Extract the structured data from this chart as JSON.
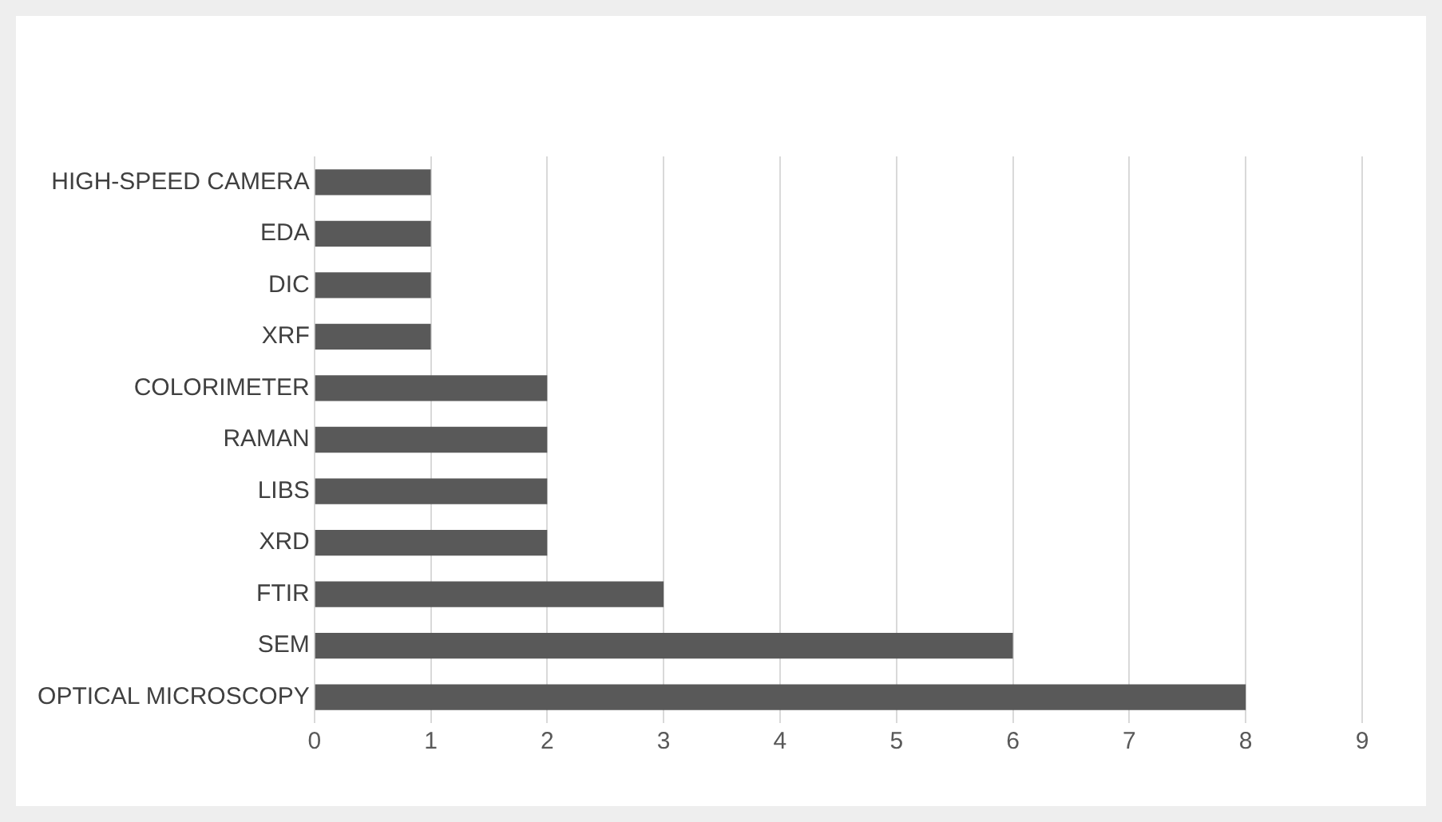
{
  "chart_data": {
    "type": "bar",
    "orientation": "horizontal",
    "categories": [
      "HIGH-SPEED CAMERA",
      "EDA",
      "DIC",
      "XRF",
      "COLORIMETER",
      "RAMAN",
      "LIBS",
      "XRD",
      "FTIR",
      "SEM",
      "OPTICAL MICROSCOPY"
    ],
    "values": [
      1,
      1,
      1,
      1,
      2,
      2,
      2,
      2,
      3,
      6,
      8
    ],
    "color": "#595959",
    "xlim": [
      0,
      9
    ],
    "xticks": [
      0,
      1,
      2,
      3,
      4,
      5,
      6,
      7,
      8,
      9
    ],
    "grid": "x"
  }
}
